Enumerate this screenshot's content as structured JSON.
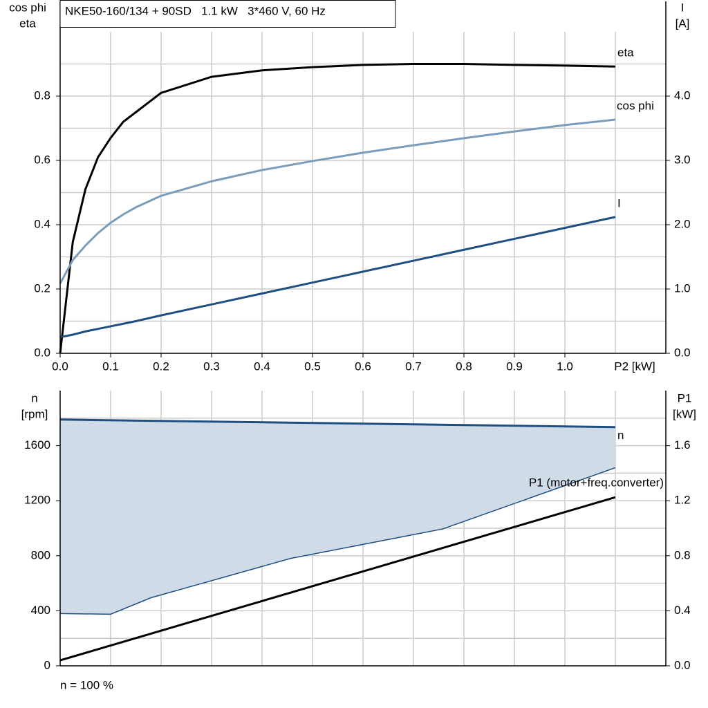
{
  "chart_data": [
    {
      "type": "line",
      "title": "NKE50-160/134 + 90SD   1.1 kW   3*460 V, 60 Hz",
      "ylabel": [
        "cos phi",
        "eta"
      ],
      "y2label": [
        "I",
        "[A]"
      ],
      "xlabel": "P2 [kW]",
      "x": [
        0,
        0.025,
        0.05,
        0.075,
        0.1,
        0.125,
        0.15,
        0.2,
        0.3,
        0.4,
        0.5,
        0.6,
        0.7,
        0.8,
        0.9,
        1.0,
        1.1
      ],
      "xlim": [
        0,
        1.2
      ],
      "xticks": [
        {
          "value": 0,
          "label": "0.0"
        },
        0.1,
        0.2,
        0.3,
        0.4,
        0.5,
        0.6,
        0.7,
        0.8,
        0.9,
        {
          "value": 1,
          "label": "1.0"
        }
      ],
      "ylim": [
        0,
        1
      ],
      "yticks": [
        {
          "value": 0,
          "label": "0.0"
        },
        0.2,
        0.4,
        0.6,
        0.8
      ],
      "y2lim": [
        0,
        5
      ],
      "y2ticks": [
        {
          "value": 0,
          "label": "0.0"
        },
        {
          "value": 1,
          "label": "1.0"
        },
        {
          "value": 2,
          "label": "2.0"
        },
        {
          "value": 3,
          "label": "3.0"
        },
        {
          "value": 4,
          "label": "4.0"
        }
      ],
      "xgrid": [
        0.1,
        0.2,
        0.3,
        0.4,
        0.5,
        0.6,
        0.7,
        0.8,
        0.9,
        1.0,
        1.1
      ],
      "ygrid": [
        0.1,
        0.2,
        0.3,
        0.4,
        0.5,
        0.6,
        0.7,
        0.8,
        0.9
      ],
      "series": [
        {
          "name": "eta",
          "color": "#000000",
          "values": [
            0,
            0.346,
            0.51,
            0.61,
            0.67,
            0.72,
            0.75,
            0.81,
            0.86,
            0.88,
            0.89,
            0.897,
            0.9,
            0.9,
            0.897,
            0.895,
            0.892
          ]
        },
        {
          "name": "cos phi",
          "color": "#7a9cbb",
          "values": [
            0.217,
            0.29,
            0.335,
            0.374,
            0.406,
            0.432,
            0.454,
            0.49,
            0.535,
            0.57,
            0.598,
            0.624,
            0.647,
            0.669,
            0.69,
            0.71,
            0.727
          ]
        },
        {
          "name": "I",
          "color": "#1f4e80",
          "axis": "y2",
          "values": [
            0.25,
            0.29,
            0.34,
            0.38,
            0.42,
            0.46,
            0.5,
            0.59,
            0.76,
            0.93,
            1.1,
            1.27,
            1.44,
            1.61,
            1.78,
            1.95,
            2.12
          ]
        }
      ]
    },
    {
      "type": "line",
      "ylabel": [
        "n",
        "[rpm]"
      ],
      "y2label": [
        "P1",
        "[kW]"
      ],
      "note": "n = 100 %",
      "xlim": [
        0,
        1.2
      ],
      "ylim": [
        0,
        2000
      ],
      "yticks": [
        0,
        400,
        800,
        1200,
        1600
      ],
      "y2lim": [
        0,
        2
      ],
      "y2ticks": [
        {
          "value": 0,
          "label": "0.0"
        },
        0.4,
        0.8,
        1.2,
        1.6
      ],
      "xgrid": [
        0.1,
        0.2,
        0.3,
        0.4,
        0.5,
        0.6,
        0.7,
        0.8,
        0.9,
        1.0,
        1.1
      ],
      "ygrid": [
        200,
        400,
        600,
        800,
        1000,
        1200,
        1400,
        1600,
        1800
      ],
      "series": [
        {
          "name": "n",
          "color": "#1f4e80",
          "x": [
            0,
            1.1
          ],
          "values": [
            1790,
            1735
          ]
        },
        {
          "color": "#1f4e80",
          "fill": "#cfdbe7",
          "x": [
            0,
            0.1,
            0.18,
            0.456,
            0.758,
            1.1
          ],
          "values": [
            380,
            375,
            495,
            780,
            995,
            1440
          ]
        },
        {
          "name": "P1 (motor+freq.converter)",
          "color": "#000000",
          "axis": "y2",
          "x": [
            0,
            1.1
          ],
          "values": [
            0.04,
            1.225
          ]
        }
      ]
    }
  ]
}
